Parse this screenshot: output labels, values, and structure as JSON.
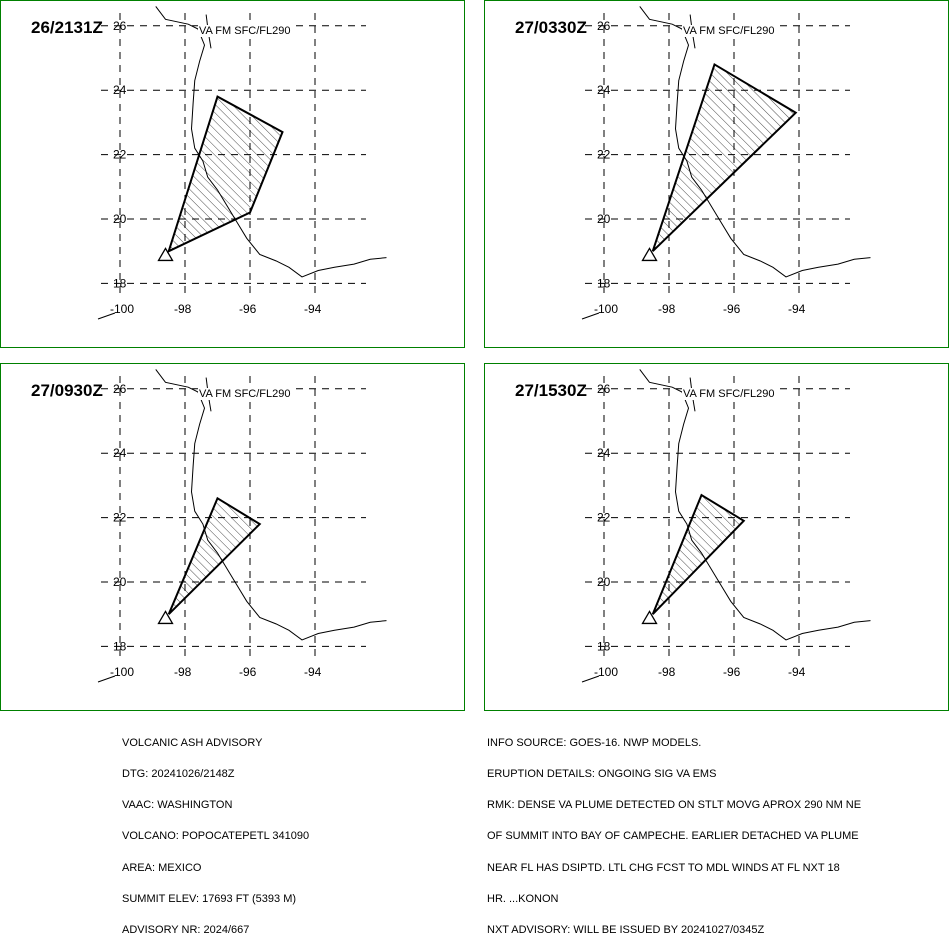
{
  "panels": [
    {
      "time": "26/2131Z",
      "level": "VA FM SFC/FL290",
      "polygon": [
        [
          -98.5,
          19.0
        ],
        [
          -97.0,
          23.8
        ],
        [
          -95.0,
          22.7
        ],
        [
          -96.0,
          20.2
        ],
        [
          -98.5,
          19.0
        ]
      ]
    },
    {
      "time": "27/0330Z",
      "level": "VA FM SFC/FL290",
      "polygon": [
        [
          -98.5,
          19.0
        ],
        [
          -96.6,
          24.8
        ],
        [
          -94.1,
          23.3
        ],
        [
          -98.5,
          19.0
        ]
      ]
    },
    {
      "time": "27/0930Z",
      "level": "VA FM SFC/FL290",
      "polygon": [
        [
          -98.5,
          19.0
        ],
        [
          -97.0,
          22.6
        ],
        [
          -95.7,
          21.8
        ],
        [
          -98.5,
          19.0
        ]
      ]
    },
    {
      "time": "27/1530Z",
      "level": "VA FM SFC/FL290",
      "polygon": [
        [
          -98.5,
          19.0
        ],
        [
          -97.0,
          22.7
        ],
        [
          -95.7,
          21.9
        ],
        [
          -98.5,
          19.0
        ]
      ]
    }
  ],
  "map": {
    "lon_labels": [
      "-100",
      "-98",
      "-96",
      "-94"
    ],
    "lon_values": [
      -100,
      -98,
      -96,
      -94
    ],
    "lat_labels": [
      "26",
      "24",
      "22",
      "20",
      "18"
    ],
    "lat_values": [
      26,
      24,
      22,
      20,
      18
    ],
    "volcano_marker": "triangle-icon",
    "outline_color": "#008000"
  },
  "advisory_left": [
    "VOLCANIC ASH ADVISORY",
    "DTG: 20241026/2148Z",
    "VAAC: WASHINGTON",
    "VOLCANO: POPOCATEPETL 341090",
    "AREA: MEXICO",
    "SUMMIT ELEV: 17693 FT (5393 M)",
    "ADVISORY NR: 2024/667"
  ],
  "advisory_right": [
    "INFO SOURCE: GOES-16. NWP MODELS.",
    "ERUPTION DETAILS: ONGOING SIG VA EMS",
    "RMK: DENSE VA PLUME DETECTED ON STLT MOVG APROX 290 NM NE",
    "OF SUMMIT INTO BAY OF CAMPECHE. EARLIER DETACHED VA PLUME",
    "NEAR FL HAS DSIPTD. LTL CHG FCST TO MDL WINDS AT FL NXT 18",
    "HR. ...KONON",
    "NXT ADVISORY: WILL BE ISSUED BY 20241027/0345Z"
  ]
}
